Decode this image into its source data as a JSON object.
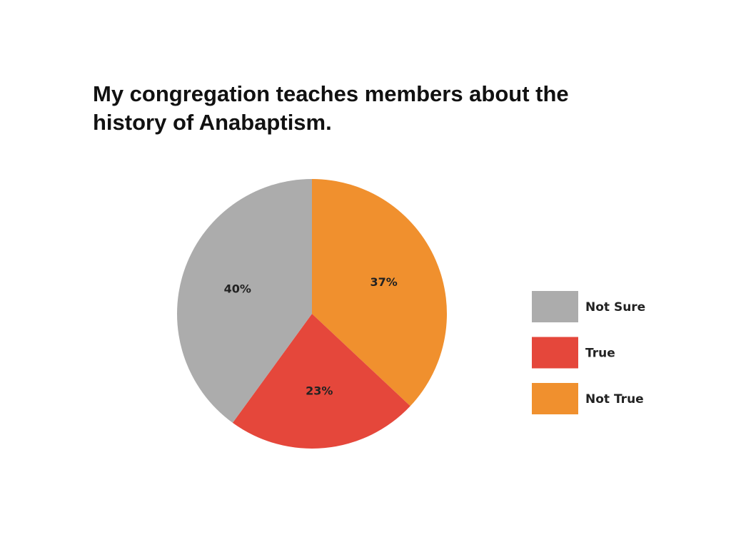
{
  "chart_data": {
    "type": "pie",
    "title_lines": [
      "My congregation teaches members about the",
      "history of Anabaptism."
    ],
    "slices": [
      {
        "label": "Not True",
        "value": 37,
        "display": "37%",
        "color": "#F0902E"
      },
      {
        "label": "True",
        "value": 23,
        "display": "23%",
        "color": "#E5473B"
      },
      {
        "label": "Not Sure",
        "value": 40,
        "display": "40%",
        "color": "#ACACAC"
      }
    ],
    "legend": {
      "placement": "right",
      "entries": [
        {
          "label": "Not Sure",
          "color": "#ACACAC"
        },
        {
          "label": "True",
          "color": "#E5473B"
        },
        {
          "label": "Not True",
          "color": "#F0902E"
        }
      ]
    }
  }
}
